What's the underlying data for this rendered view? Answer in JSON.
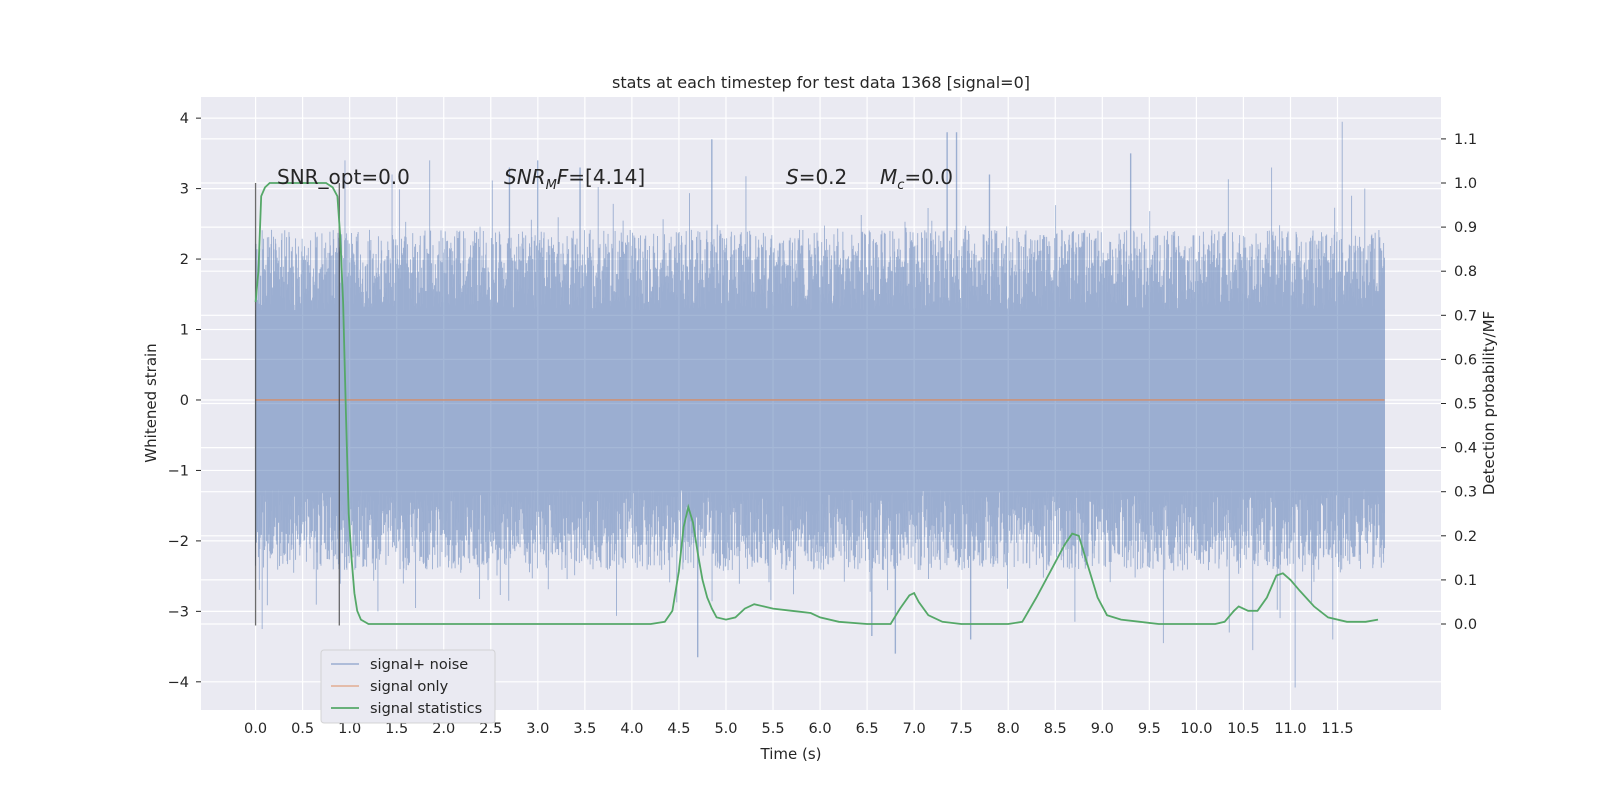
{
  "chart_data": {
    "type": "line",
    "title": "stats at each timestep for test data 1368 [signal=0]",
    "xlabel": "Time (s)",
    "ylabel": "Whitened strain",
    "ylabel_right": "Detection probability/MF",
    "xlim": [
      -0.58,
      12.6
    ],
    "ylim": [
      -4.4,
      4.3
    ],
    "ylim_right": [
      -0.195,
      1.195
    ],
    "x_ticks": [
      "0.0",
      "0.5",
      "1.0",
      "1.5",
      "2.0",
      "2.5",
      "3.0",
      "3.5",
      "4.0",
      "4.5",
      "5.0",
      "5.5",
      "6.0",
      "6.5",
      "7.0",
      "7.5",
      "8.0",
      "8.5",
      "9.0",
      "9.5",
      "10.0",
      "10.5",
      "11.0",
      "11.5"
    ],
    "y_ticks": [
      "4",
      "3",
      "2",
      "1",
      "0",
      "−1",
      "−2",
      "−3",
      "−4"
    ],
    "y_ticks_right": [
      "1.1",
      "1.0",
      "0.9",
      "0.8",
      "0.7",
      "0.6",
      "0.5",
      "0.4",
      "0.3",
      "0.2",
      "0.1",
      "0.0"
    ],
    "grid": true,
    "legend_placement": "lower-left",
    "annotations": {
      "snr_opt": "SNR_opt=0.0",
      "snr_mf": "SNRMF=[4.14]",
      "s_stat": "S=0.2",
      "m_chirp": "Mc=0.0"
    },
    "vertical_markers": [
      0.0,
      0.89
    ],
    "series": [
      {
        "name": "signal+ noise",
        "color": "#4c72b0",
        "x_range": [
          0.0,
          12.0
        ],
        "envelope_upper_typical": 2.3,
        "envelope_lower_typical": -2.3,
        "peaks": [
          [
            0.95,
            3.4
          ],
          [
            1.45,
            3.2
          ],
          [
            1.85,
            3.4
          ],
          [
            2.7,
            3.3
          ],
          [
            3.0,
            3.4
          ],
          [
            3.45,
            3.3
          ],
          [
            4.85,
            3.7
          ],
          [
            7.35,
            3.8
          ],
          [
            7.45,
            3.8
          ],
          [
            7.8,
            3.2
          ],
          [
            9.3,
            3.5
          ],
          [
            10.8,
            3.3
          ],
          [
            11.55,
            3.95
          ]
        ],
        "troughs": [
          [
            0.07,
            -3.25
          ],
          [
            1.3,
            -3.0
          ],
          [
            4.7,
            -3.65
          ],
          [
            6.8,
            -3.6
          ],
          [
            6.55,
            -3.35
          ],
          [
            7.6,
            -3.4
          ],
          [
            9.65,
            -3.45
          ],
          [
            10.35,
            -3.3
          ],
          [
            10.6,
            -3.55
          ],
          [
            11.05,
            -4.08
          ],
          [
            11.45,
            -3.4
          ]
        ]
      },
      {
        "name": "signal only",
        "color": "#dd8452",
        "x": [
          0.0,
          12.0
        ],
        "y": [
          0.0,
          0.0
        ]
      },
      {
        "name": "signal statistics",
        "color": "#55a868",
        "axis": "right",
        "x": [
          0.0,
          0.03,
          0.06,
          0.1,
          0.15,
          0.2,
          0.3,
          0.45,
          0.6,
          0.75,
          0.82,
          0.87,
          0.9,
          0.93,
          0.96,
          0.99,
          1.02,
          1.05,
          1.08,
          1.12,
          1.2,
          1.4,
          2.0,
          2.5,
          3.0,
          3.45,
          3.6,
          4.0,
          4.2,
          4.35,
          4.43,
          4.5,
          4.55,
          4.6,
          4.65,
          4.7,
          4.75,
          4.8,
          4.85,
          4.9,
          5.0,
          5.1,
          5.2,
          5.3,
          5.4,
          5.5,
          5.7,
          5.9,
          6.0,
          6.2,
          6.5,
          6.75,
          6.85,
          6.95,
          7.0,
          7.05,
          7.15,
          7.3,
          7.5,
          7.7,
          8.0,
          8.15,
          8.3,
          8.45,
          8.6,
          8.68,
          8.75,
          8.85,
          8.95,
          9.05,
          9.2,
          9.4,
          9.6,
          10.0,
          10.2,
          10.3,
          10.4,
          10.45,
          10.55,
          10.65,
          10.75,
          10.85,
          10.92,
          11.0,
          11.1,
          11.25,
          11.4,
          11.6,
          11.8,
          11.93
        ],
        "y": [
          0.73,
          0.8,
          0.97,
          0.99,
          1.0,
          1.0,
          1.0,
          1.0,
          1.0,
          1.0,
          0.99,
          0.97,
          0.88,
          0.73,
          0.48,
          0.25,
          0.15,
          0.07,
          0.03,
          0.01,
          0.0,
          0.0,
          0.0,
          0.0,
          0.0,
          0.0,
          0.0,
          0.0,
          0.0,
          0.005,
          0.03,
          0.12,
          0.22,
          0.265,
          0.23,
          0.16,
          0.1,
          0.06,
          0.035,
          0.015,
          0.01,
          0.015,
          0.035,
          0.045,
          0.04,
          0.035,
          0.03,
          0.025,
          0.015,
          0.005,
          0.0,
          0.0,
          0.035,
          0.065,
          0.07,
          0.05,
          0.02,
          0.005,
          0.0,
          0.0,
          0.0,
          0.005,
          0.06,
          0.12,
          0.18,
          0.205,
          0.2,
          0.13,
          0.06,
          0.02,
          0.01,
          0.005,
          0.0,
          0.0,
          0.0,
          0.005,
          0.03,
          0.04,
          0.03,
          0.03,
          0.06,
          0.11,
          0.115,
          0.1,
          0.075,
          0.04,
          0.015,
          0.005,
          0.005,
          0.01
        ]
      }
    ]
  }
}
